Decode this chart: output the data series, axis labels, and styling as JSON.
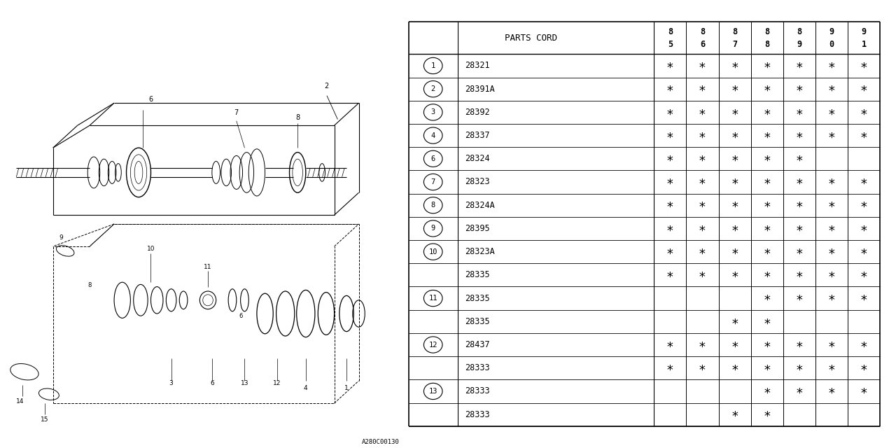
{
  "bg_color": "#ffffff",
  "lc": "#000000",
  "fig_width": 12.8,
  "fig_height": 6.4,
  "watermark": "A280C00130",
  "table": {
    "header_text": "PARTS CORD",
    "year_cols": [
      "8\n5",
      "8\n6",
      "8\n7",
      "8\n8",
      "8\n9",
      "9\n0",
      "9\n1"
    ],
    "rows": [
      {
        "ref": "1",
        "part": "28321",
        "marks": [
          1,
          1,
          1,
          1,
          1,
          1,
          1
        ]
      },
      {
        "ref": "2",
        "part": "28391A",
        "marks": [
          1,
          1,
          1,
          1,
          1,
          1,
          1
        ]
      },
      {
        "ref": "3",
        "part": "28392",
        "marks": [
          1,
          1,
          1,
          1,
          1,
          1,
          1
        ]
      },
      {
        "ref": "4",
        "part": "28337",
        "marks": [
          1,
          1,
          1,
          1,
          1,
          1,
          1
        ]
      },
      {
        "ref": "6",
        "part": "28324",
        "marks": [
          1,
          1,
          1,
          1,
          1,
          0,
          0
        ]
      },
      {
        "ref": "7",
        "part": "28323",
        "marks": [
          1,
          1,
          1,
          1,
          1,
          1,
          1
        ]
      },
      {
        "ref": "8",
        "part": "28324A",
        "marks": [
          1,
          1,
          1,
          1,
          1,
          1,
          1
        ]
      },
      {
        "ref": "9",
        "part": "28395",
        "marks": [
          1,
          1,
          1,
          1,
          1,
          1,
          1
        ]
      },
      {
        "ref": "10",
        "part": "28323A",
        "marks": [
          1,
          1,
          1,
          1,
          1,
          1,
          1
        ]
      },
      {
        "ref": "",
        "part": "28335",
        "marks": [
          1,
          1,
          1,
          1,
          1,
          1,
          1
        ]
      },
      {
        "ref": "11",
        "part": "28335",
        "marks": [
          0,
          0,
          0,
          1,
          1,
          1,
          1
        ]
      },
      {
        "ref": "",
        "part": "28335",
        "marks": [
          0,
          0,
          1,
          1,
          0,
          0,
          0
        ]
      },
      {
        "ref": "12",
        "part": "28437",
        "marks": [
          1,
          1,
          1,
          1,
          1,
          1,
          1
        ]
      },
      {
        "ref": "",
        "part": "28333",
        "marks": [
          1,
          1,
          1,
          1,
          1,
          1,
          1
        ]
      },
      {
        "ref": "13",
        "part": "28333",
        "marks": [
          0,
          0,
          0,
          1,
          1,
          1,
          1
        ]
      },
      {
        "ref": "",
        "part": "28333",
        "marks": [
          0,
          0,
          1,
          1,
          0,
          0,
          0
        ]
      }
    ]
  }
}
